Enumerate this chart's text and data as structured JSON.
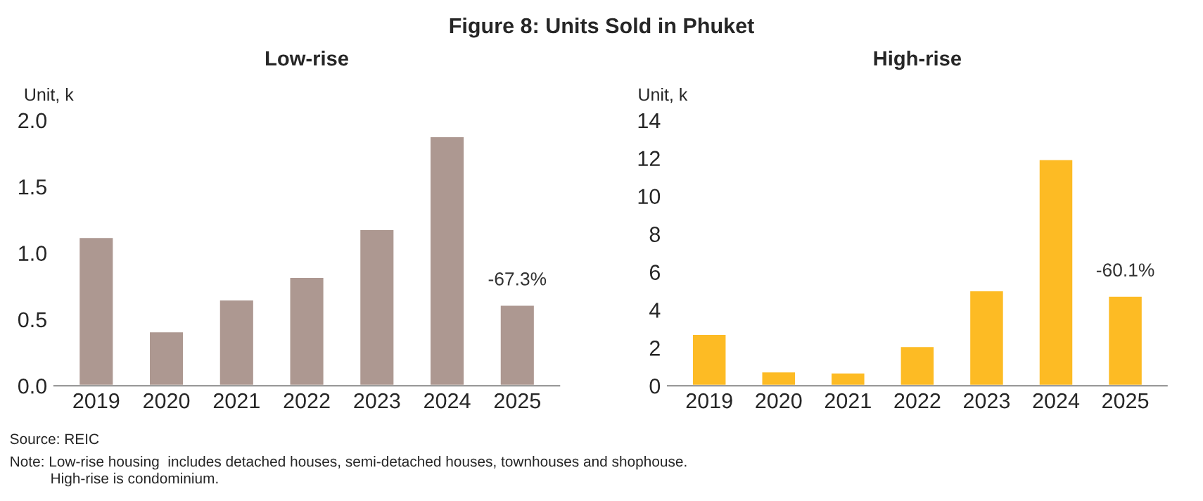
{
  "chart_data": [
    {
      "type": "bar",
      "title": "Low-rise",
      "ylabel": "Unit, k",
      "categories": [
        "2019",
        "2020",
        "2021",
        "2022",
        "2023",
        "2024",
        "2025"
      ],
      "values": [
        1.12,
        0.41,
        0.65,
        0.82,
        1.18,
        1.88,
        0.61
      ],
      "color": "#ad9891",
      "ylim": [
        0,
        2.0
      ],
      "yticks": [
        {
          "value": 0,
          "label": "0.0"
        },
        {
          "value": 0.5,
          "label": "0.5"
        },
        {
          "value": 1.0,
          "label": "1.0"
        },
        {
          "value": 1.5,
          "label": "1.5"
        },
        {
          "value": 2.0,
          "label": "2.0"
        }
      ],
      "grid": false,
      "legend": false,
      "annotations": [
        "Figure 8: Units Sold in Phuket",
        {
          "text": "-67.3%",
          "x": "2025",
          "y": 0.61
        },
        "Source: REIC",
        "Note: Low-rise housing  includes detached houses, semi-detached houses, townhouses and shophouse.\n          High-rise is condominium."
      ]
    },
    {
      "type": "bar",
      "title": "High-rise",
      "ylabel": "Unit, k",
      "categories": [
        "2019",
        "2020",
        "2021",
        "2022",
        "2023",
        "2024",
        "2025"
      ],
      "values": [
        2.73,
        0.76,
        0.7,
        2.09,
        5.03,
        11.95,
        4.74
      ],
      "color": "#fdbb24",
      "ylim": [
        0,
        14
      ],
      "yticks": [
        0,
        2,
        4,
        6,
        8,
        10,
        12,
        14
      ],
      "grid": false,
      "legend": false,
      "annotations": [
        {
          "text": "-60.1%",
          "x": "2025",
          "y": 4.74
        }
      ]
    }
  ]
}
